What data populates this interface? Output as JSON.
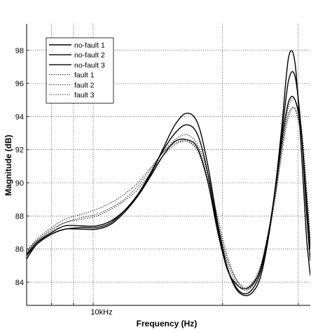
{
  "chart_data": {
    "type": "line",
    "title": "",
    "xlabel": "Frequency (Hz)",
    "ylabel": "Magnitude (dB)",
    "x_scale": "log",
    "x_range_hz": [
      7000,
      32000
    ],
    "ylim": [
      82.6,
      99.6
    ],
    "y_ticks": [
      84,
      86,
      88,
      90,
      92,
      94,
      96,
      98
    ],
    "x_tick_label": {
      "value": 10000,
      "label": "10kHz"
    },
    "x_minor_gridlines_hz": [
      8000,
      9000,
      10000,
      20000,
      30000
    ],
    "grid": true,
    "legend_position": "top-left",
    "series": [
      {
        "name": "no-fault 1",
        "style": "solid",
        "x": [
          7000,
          7400,
          8000,
          8600,
          9400,
          10200,
          11000,
          11800,
          12700,
          13600,
          14500,
          15500,
          16500,
          17500,
          18500,
          19500,
          20500,
          21500,
          22500,
          23500,
          24500,
          25500,
          26500,
          27500,
          28500,
          29500,
          30500,
          31300,
          32000
        ],
        "y": [
          85.4,
          86.3,
          86.9,
          87.2,
          87.2,
          87.2,
          87.5,
          88.2,
          89.2,
          90.5,
          92.0,
          93.5,
          94.2,
          93.6,
          91.0,
          87.5,
          84.9,
          83.6,
          83.2,
          83.4,
          84.3,
          86.5,
          89.6,
          93.5,
          97.6,
          97.2,
          92.0,
          87.0,
          84.4
        ]
      },
      {
        "name": "no-fault 2",
        "style": "solid",
        "x": [
          7000,
          7400,
          8000,
          8600,
          9400,
          10200,
          11000,
          11800,
          12700,
          13600,
          14500,
          15500,
          16500,
          17500,
          18500,
          19500,
          20500,
          21500,
          22500,
          23500,
          24500,
          25500,
          26500,
          27500,
          28500,
          29500,
          30500,
          31300,
          32000
        ],
        "y": [
          85.6,
          86.3,
          86.9,
          87.2,
          87.3,
          87.3,
          87.6,
          88.3,
          89.3,
          90.6,
          91.9,
          93.0,
          93.5,
          92.9,
          90.5,
          87.2,
          84.9,
          83.7,
          83.3,
          83.6,
          84.6,
          86.7,
          89.6,
          93.0,
          96.2,
          96.4,
          93.1,
          88.5,
          85.3
        ]
      },
      {
        "name": "no-fault 3",
        "style": "solid",
        "x": [
          7000,
          7400,
          8000,
          8600,
          9400,
          10200,
          11000,
          11800,
          12700,
          13600,
          14500,
          15500,
          16500,
          17500,
          18500,
          19500,
          20500,
          21500,
          22500,
          23500,
          24500,
          25500,
          26500,
          27500,
          28500,
          29500,
          30500,
          31300,
          32000
        ],
        "y": [
          85.7,
          86.4,
          87.0,
          87.4,
          87.4,
          87.4,
          87.7,
          88.3,
          89.2,
          90.4,
          91.6,
          92.5,
          92.6,
          92.1,
          90.0,
          87.0,
          84.8,
          83.9,
          83.6,
          83.9,
          84.8,
          86.8,
          89.5,
          92.6,
          94.9,
          95.0,
          93.0,
          89.3,
          86.0
        ]
      },
      {
        "name": "fault 1",
        "style": "dotted",
        "x": [
          7000,
          7400,
          8000,
          8600,
          9400,
          10200,
          11000,
          11800,
          12700,
          13600,
          14500,
          15500,
          16500,
          17500,
          18500,
          19500,
          20500,
          21500,
          22500,
          23500,
          24500,
          25500,
          26500,
          27500,
          28500,
          29500,
          30500,
          31300,
          32000
        ],
        "y": [
          85.9,
          86.6,
          87.3,
          87.8,
          88.1,
          88.4,
          88.8,
          89.3,
          90.0,
          90.9,
          91.8,
          92.4,
          92.5,
          91.9,
          90.0,
          87.4,
          85.2,
          84.0,
          83.5,
          83.8,
          84.8,
          86.6,
          89.0,
          91.8,
          94.0,
          94.5,
          92.8,
          89.3,
          86.0
        ]
      },
      {
        "name": "fault 2",
        "style": "dotted",
        "x": [
          7000,
          7400,
          8000,
          8600,
          9400,
          10200,
          11000,
          11800,
          12700,
          13600,
          14500,
          15500,
          16500,
          17500,
          18500,
          19500,
          20500,
          21500,
          22500,
          23500,
          24500,
          25500,
          26500,
          27500,
          28500,
          29500,
          30500,
          31300,
          32000
        ],
        "y": [
          85.9,
          86.5,
          87.2,
          87.6,
          87.9,
          88.1,
          88.5,
          89.0,
          89.8,
          90.8,
          91.8,
          92.6,
          92.9,
          92.3,
          90.5,
          87.9,
          85.6,
          84.2,
          83.6,
          83.8,
          84.8,
          86.8,
          89.2,
          92.2,
          94.6,
          95.0,
          93.4,
          90.1,
          86.6
        ]
      },
      {
        "name": "fault 3",
        "style": "dotted",
        "x": [
          7000,
          7400,
          8000,
          8600,
          9400,
          10200,
          11000,
          11800,
          12700,
          13600,
          14500,
          15500,
          16500,
          17500,
          18500,
          19500,
          20500,
          21500,
          22500,
          23500,
          24500,
          25500,
          26500,
          27500,
          28500,
          29500,
          30500,
          31300,
          32000
        ],
        "y": [
          85.8,
          86.5,
          87.1,
          87.6,
          87.8,
          88.0,
          88.4,
          88.9,
          89.6,
          90.6,
          91.6,
          92.3,
          92.5,
          92.0,
          90.2,
          87.6,
          85.4,
          84.2,
          83.7,
          84.0,
          85.0,
          86.9,
          89.3,
          92.2,
          94.2,
          94.4,
          92.7,
          89.5,
          86.3
        ]
      }
    ]
  }
}
